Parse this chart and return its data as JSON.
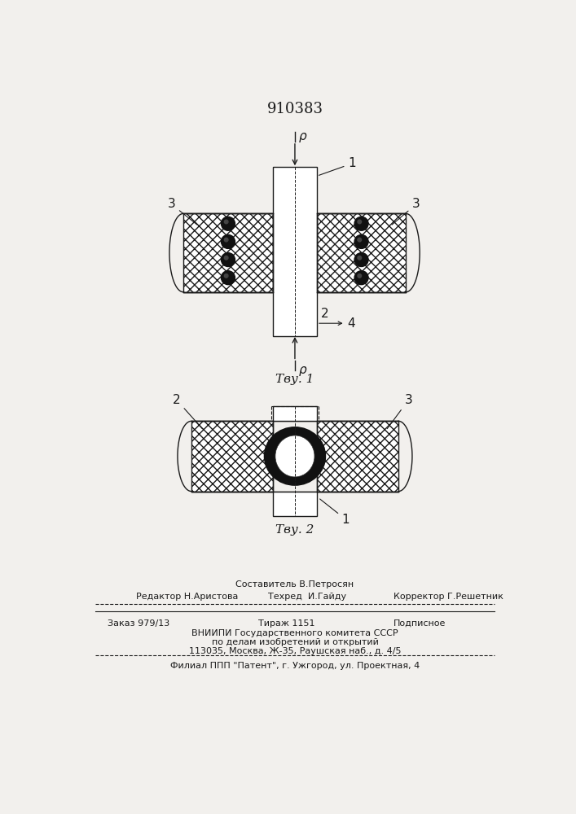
{
  "title": "910383",
  "fig1_caption": "Τву. 1",
  "fig2_caption": "Τву. 2",
  "bg_color": "#f2f0ed",
  "line_color": "#1a1a1a",
  "label_1_fig1": "1",
  "label_2_fig1": "2",
  "label_3_fig1": "3",
  "label_4_fig1": "4",
  "label_p": "ρ",
  "label_1_fig2": "1",
  "label_2_fig2": "2",
  "label_3_fig2": "3",
  "bt1": "Составитель В.Петросян",
  "bt2_left": "Редактор Н.Аристова",
  "bt2_mid": "Техред  И.Гайду",
  "bt2_right": "Корректор Г.Решетник",
  "bt3_left": "Заказ 979/13",
  "bt3_mid": "Тираж 1151",
  "bt3_right": "Подписное",
  "bt4": "ВНИИПИ Государственного комитета СССР",
  "bt5": "по делам изобретений и открытий",
  "bt6": "113035, Москва, Ж-35, Раушская наб., д. 4/5",
  "bt7": "Филиал ППП \"Патент\", г. Ужгород, ул. Проектная, 4"
}
